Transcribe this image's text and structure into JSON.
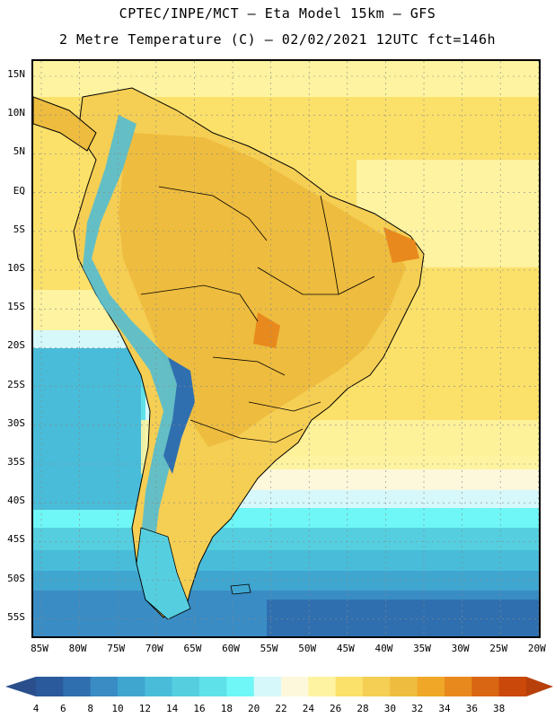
{
  "header": {
    "line1": "CPTEC/INPE/MCT –  Eta Model 15km – GFS",
    "line2": "2 Metre Temperature (C) – 02/02/2021 12UTC fct=146h"
  },
  "lat_labels": [
    "15N",
    "10N",
    "5N",
    "EQ",
    "5S",
    "10S",
    "15S",
    "20S",
    "25S",
    "30S",
    "35S",
    "40S",
    "45S",
    "50S",
    "55S"
  ],
  "lon_labels": [
    "85W",
    "80W",
    "75W",
    "70W",
    "65W",
    "60W",
    "55W",
    "50W",
    "45W",
    "40W",
    "35W",
    "30W",
    "25W",
    "20W"
  ],
  "legend": {
    "values": [
      "4",
      "6",
      "8",
      "10",
      "12",
      "14",
      "16",
      "18",
      "20",
      "22",
      "24",
      "26",
      "28",
      "30",
      "32",
      "34",
      "36",
      "38"
    ],
    "colors": [
      "#2b5a9c",
      "#2f6fb0",
      "#3a8cc4",
      "#3fa6d0",
      "#49bcd9",
      "#55cfe0",
      "#5fe1ea",
      "#6ff6f6",
      "#d6f8fb",
      "#fdf8dc",
      "#fdf3a0",
      "#fbe06a",
      "#f5ce54",
      "#eebc3e",
      "#f0a728",
      "#e8891e",
      "#d96612",
      "#c9480a"
    ]
  }
}
